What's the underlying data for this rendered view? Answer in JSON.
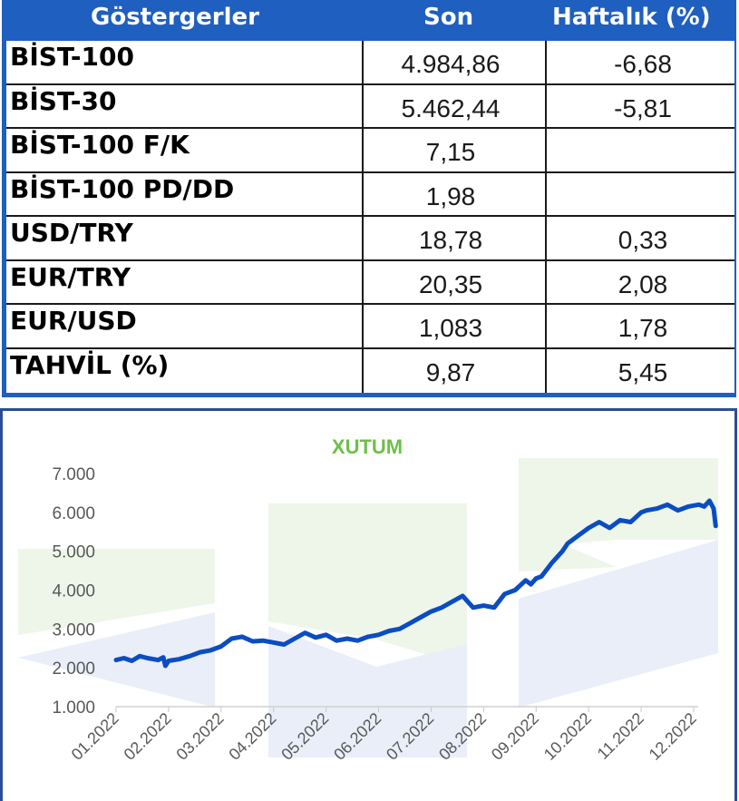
{
  "table": {
    "headers": {
      "name": "Göstergerler",
      "son": "Son",
      "weekly": "Haftalık (%)"
    },
    "rows": [
      {
        "name": "BİST-100",
        "son": "4.984,86",
        "weekly": "-6,68"
      },
      {
        "name": "BİST-30",
        "son": "5.462,44",
        "weekly": "-5,81"
      },
      {
        "name": "BİST-100 F/K",
        "son": "7,15",
        "weekly": ""
      },
      {
        "name": "BİST-100 PD/DD",
        "son": "1,98",
        "weekly": ""
      },
      {
        "name": "USD/TRY",
        "son": "18,78",
        "weekly": "0,33"
      },
      {
        "name": "EUR/TRY",
        "son": "20,35",
        "weekly": "2,08"
      },
      {
        "name": "EUR/USD",
        "son": "1,083",
        "weekly": "1,78"
      },
      {
        "name": "TAHVİL (%)",
        "son": "9,87",
        "weekly": "5,45"
      }
    ]
  },
  "colors": {
    "header_bg": "#1f5fbf",
    "line": "#0b4cc2",
    "title": "#6cc04a",
    "frame": "#2a4e96"
  },
  "chart_data": {
    "type": "line",
    "title": "XUTUM",
    "xlabel": "",
    "ylabel": "",
    "ylim": [
      1000,
      7000
    ],
    "y_ticks": [
      "1.000",
      "2.000",
      "3.000",
      "4.000",
      "5.000",
      "6.000",
      "7.000"
    ],
    "x_ticks": [
      "01.2022",
      "02.2022",
      "03.2022",
      "04.2022",
      "05.2022",
      "06.2022",
      "07.2022",
      "08.2022",
      "09.2022",
      "10.2022",
      "11.2022",
      "12.2022"
    ],
    "grid": false,
    "series": [
      {
        "x": [
          0.0,
          0.15,
          0.3,
          0.45,
          0.6,
          0.8,
          0.9,
          0.94,
          1.0,
          1.2,
          1.4,
          1.6,
          1.8,
          2.0,
          2.2,
          2.4,
          2.6,
          2.8,
          3.0,
          3.2,
          3.4,
          3.6,
          3.8,
          4.0,
          4.2,
          4.4,
          4.6,
          4.8,
          5.0,
          5.2,
          5.4,
          5.6,
          5.8,
          6.0,
          6.2,
          6.4,
          6.6,
          6.8,
          7.0,
          7.2,
          7.4,
          7.6,
          7.8,
          7.9,
          8.0,
          8.1,
          8.3,
          8.5,
          8.6,
          8.8,
          9.0,
          9.2,
          9.4,
          9.6,
          9.8,
          10.0,
          10.1,
          10.3,
          10.5,
          10.7,
          10.9,
          11.1,
          11.2,
          11.3,
          11.38,
          11.42
        ],
        "values": [
          2200,
          2250,
          2180,
          2300,
          2250,
          2200,
          2270,
          2050,
          2180,
          2220,
          2300,
          2400,
          2450,
          2550,
          2750,
          2800,
          2680,
          2700,
          2650,
          2600,
          2750,
          2900,
          2780,
          2850,
          2700,
          2750,
          2700,
          2800,
          2850,
          2950,
          3000,
          3150,
          3300,
          3450,
          3550,
          3700,
          3850,
          3550,
          3600,
          3550,
          3900,
          4000,
          4250,
          4150,
          4300,
          4350,
          4700,
          5000,
          5200,
          5400,
          5600,
          5750,
          5600,
          5800,
          5750,
          6000,
          6050,
          6100,
          6200,
          6050,
          6150,
          6200,
          6150,
          6300,
          6100,
          5650
        ]
      }
    ]
  }
}
